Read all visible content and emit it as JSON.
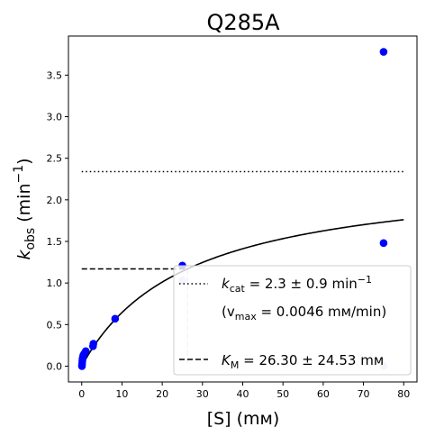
{
  "chart_data": {
    "type": "scatter",
    "title": "Q285A",
    "xlabel_text": "[S] (mм)",
    "ylabel_main": "k",
    "ylabel_sub": "obs",
    "ylabel_unit_pre": " (min",
    "ylabel_unit_sup": "−1",
    "ylabel_unit_post": ")",
    "xlim": [
      -3.3,
      83.3
    ],
    "ylim": [
      -0.19,
      3.97
    ],
    "xticks": [
      0,
      10,
      20,
      30,
      40,
      50,
      60,
      70,
      80
    ],
    "yticks": [
      0.0,
      0.5,
      1.0,
      1.5,
      2.0,
      2.5,
      3.0,
      3.5
    ],
    "grid": false,
    "legend_placement": "bottom-right",
    "kcat": 2.34,
    "km": 26.3,
    "points": [
      {
        "x": 0.05,
        "y": 0.0,
        "color": "#0000ff"
      },
      {
        "x": 0.1,
        "y": 0.03,
        "color": "#0000ff"
      },
      {
        "x": 0.15,
        "y": 0.06,
        "color": "#0000ff"
      },
      {
        "x": 0.2,
        "y": 0.09,
        "color": "#0000ff"
      },
      {
        "x": 0.3,
        "y": 0.11,
        "color": "#0000ff"
      },
      {
        "x": 0.4,
        "y": 0.13,
        "color": "#0000ff"
      },
      {
        "x": 0.6,
        "y": 0.15,
        "color": "#0000ff"
      },
      {
        "x": 1.0,
        "y": 0.18,
        "color": "#0000ff"
      },
      {
        "x": 2.8,
        "y": 0.24,
        "color": "#0000ff"
      },
      {
        "x": 2.9,
        "y": 0.27,
        "color": "#0000ff"
      },
      {
        "x": 8.3,
        "y": 0.57,
        "color": "#0000ff"
      },
      {
        "x": 25.0,
        "y": 1.21,
        "color": "#0000ff"
      },
      {
        "x": 25.0,
        "y": 1.03,
        "color": "#c8c8ff"
      },
      {
        "x": 75.0,
        "y": 3.78,
        "color": "#0000ff"
      },
      {
        "x": 75.0,
        "y": 1.48,
        "color": "#0000ff"
      },
      {
        "x": 75.0,
        "y": 0.0,
        "color": "#c8c8ff"
      }
    ],
    "legend": {
      "kcat_label_main": "k",
      "kcat_label_sub": "cat",
      "kcat_value_text": " = 2.3 ± 0.9 min",
      "kcat_unit_sup": "−1",
      "vmax_label_pre": "(v",
      "vmax_label_sub": "max",
      "vmax_value_text": " = 0.0046 mм/min)",
      "km_label_main": "K",
      "km_label_sub": "M",
      "km_value_text": " = 26.30 ± 24.53 mм"
    },
    "colors": {
      "points": "#0000ff",
      "points_faded": "#c8c8ff",
      "fit": "#000000",
      "km_vertical": "#c0c0c0"
    }
  }
}
